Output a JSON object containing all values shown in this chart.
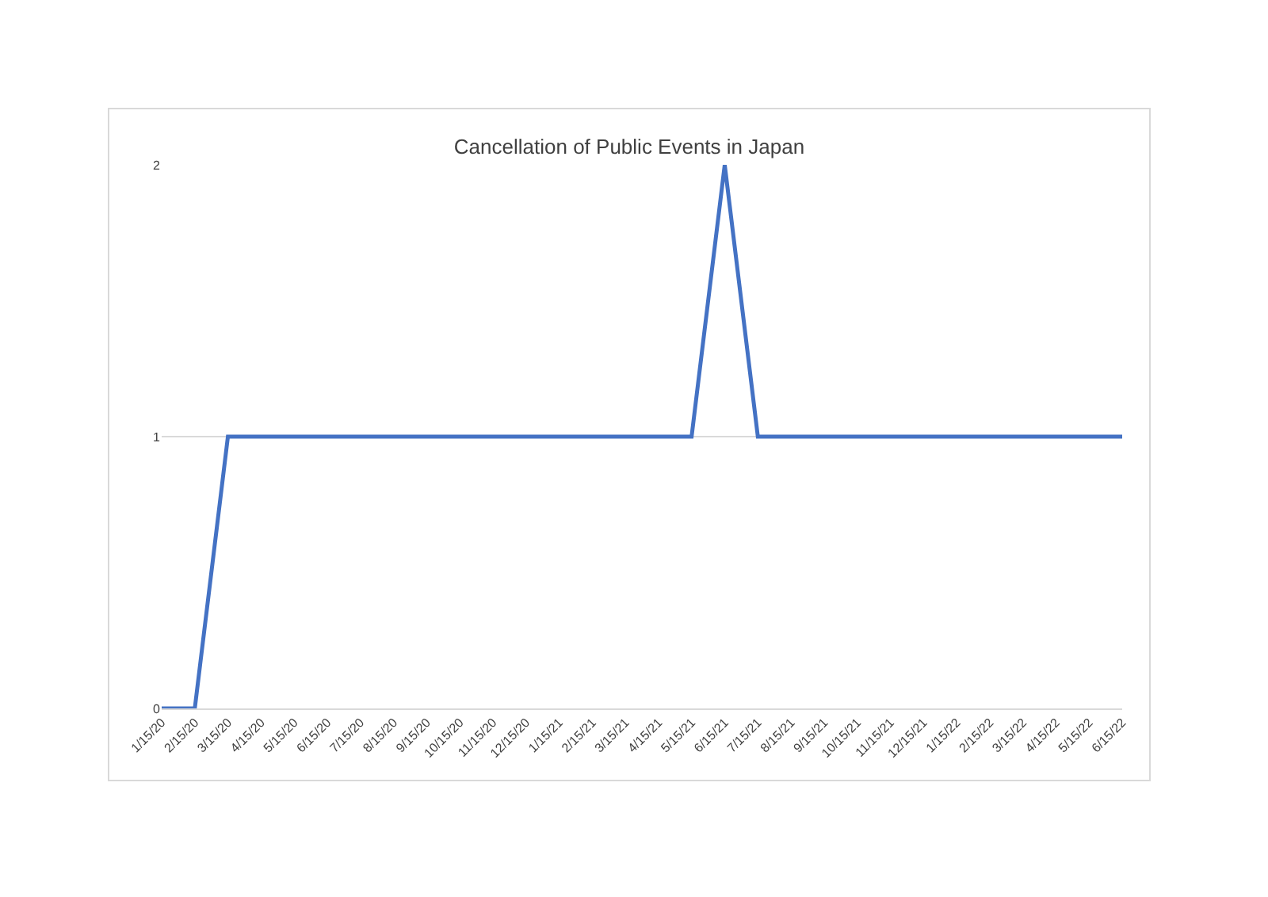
{
  "chart_data": {
    "type": "line",
    "title": "Cancellation of Public Events in Japan",
    "categories": [
      "1/15/20",
      "2/15/20",
      "3/15/20",
      "4/15/20",
      "5/15/20",
      "6/15/20",
      "7/15/20",
      "8/15/20",
      "9/15/20",
      "10/15/20",
      "11/15/20",
      "12/15/20",
      "1/15/21",
      "2/15/21",
      "3/15/21",
      "4/15/21",
      "5/15/21",
      "6/15/21",
      "7/15/21",
      "8/15/21",
      "9/15/21",
      "10/15/21",
      "11/15/21",
      "12/15/21",
      "1/15/22",
      "2/15/22",
      "3/15/22",
      "4/15/22",
      "5/15/22",
      "6/15/22"
    ],
    "series": [
      {
        "color": "#4472c4",
        "values": [
          0,
          0,
          1,
          1,
          1,
          1,
          1,
          1,
          1,
          1,
          1,
          1,
          1,
          1,
          1,
          1,
          1,
          2,
          1,
          1,
          1,
          1,
          1,
          1,
          1,
          1,
          1,
          1,
          1,
          1
        ]
      }
    ],
    "ylim": [
      0,
      2
    ],
    "yticks": [
      0,
      1,
      2
    ],
    "grid": "y",
    "legend": false,
    "marker": "none",
    "line_style": "solid"
  }
}
